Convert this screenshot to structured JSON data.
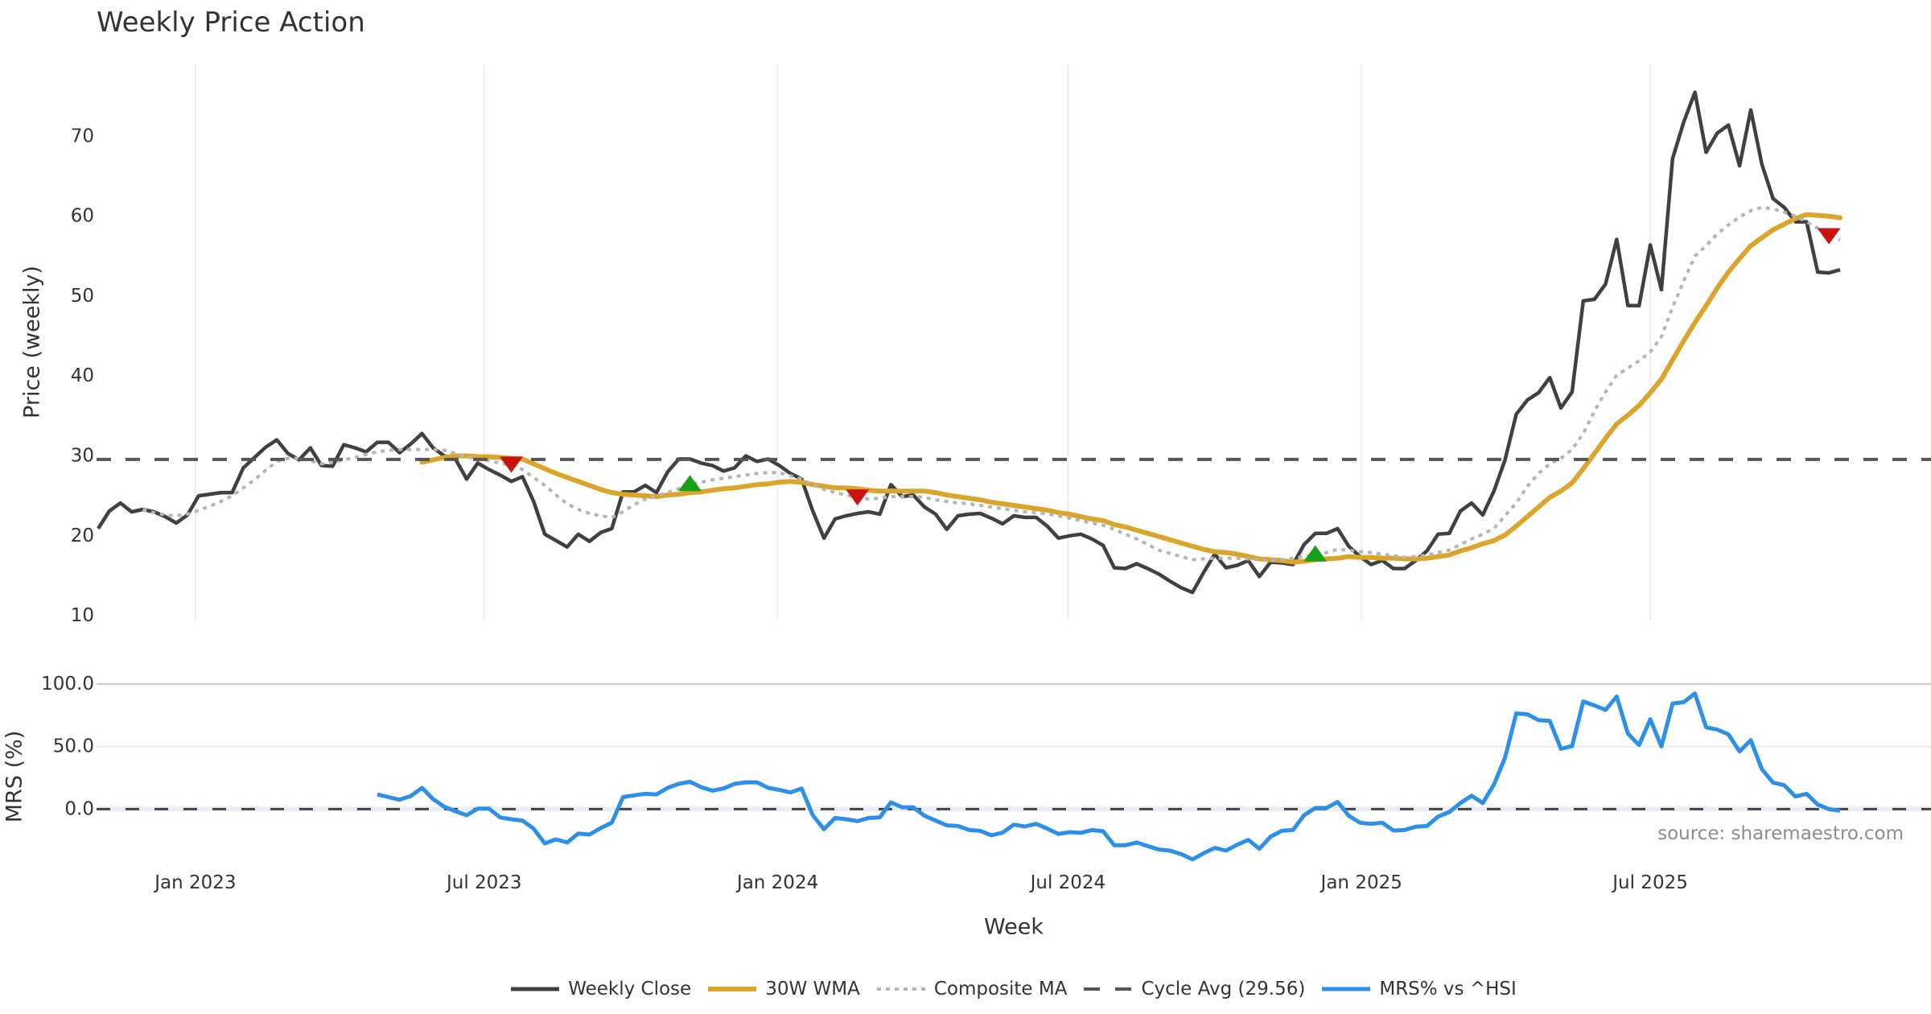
{
  "chart_data": {
    "type": "line",
    "title": "Weekly Price Action",
    "xlabel": "Week",
    "x_range": [
      "2022-10-31",
      "2025-12-24"
    ],
    "week_start": "2022-11-01",
    "week_step_days": 7,
    "x_ticks": [
      {
        "date": "2023-01-01",
        "label": "Jan 2023"
      },
      {
        "date": "2023-07-01",
        "label": "Jul 2023"
      },
      {
        "date": "2024-01-01",
        "label": "Jan 2024"
      },
      {
        "date": "2024-07-01",
        "label": "Jul 2024"
      },
      {
        "date": "2025-01-01",
        "label": "Jan 2025"
      },
      {
        "date": "2025-07-01",
        "label": "Jul 2025"
      }
    ],
    "legend_placement": "bottom",
    "price_panel": {
      "ylabel": "Price (weekly)",
      "ylim": [
        9.5,
        79.0
      ],
      "y_ticks": [
        {
          "value": 10,
          "label": "10"
        },
        {
          "value": 20,
          "label": "20"
        },
        {
          "value": 30,
          "label": "30"
        },
        {
          "value": 40,
          "label": "40"
        },
        {
          "value": 50,
          "label": "50"
        },
        {
          "value": 60,
          "label": "60"
        },
        {
          "value": 70,
          "label": "70"
        }
      ],
      "series": [
        {
          "name": "Weekly Close",
          "color": "#404040",
          "start_index": 0,
          "values": [
            20.9,
            23.1,
            24.1,
            23.0,
            23.3,
            23.0,
            22.4,
            21.6,
            22.6,
            25.0,
            25.2,
            25.4,
            25.4,
            28.5,
            29.8,
            31.1,
            32.0,
            30.3,
            29.5,
            31.0,
            28.8,
            28.7,
            31.4,
            31.0,
            30.5,
            31.7,
            31.7,
            30.4,
            31.5,
            32.8,
            31.0,
            30.0,
            29.6,
            27.1,
            29.1,
            28.3,
            27.6,
            26.8,
            27.4,
            24.3,
            20.2,
            19.4,
            18.6,
            20.2,
            19.3,
            20.4,
            20.9,
            25.5,
            25.5,
            26.3,
            25.4,
            28.0,
            29.6,
            29.6,
            29.1,
            28.8,
            28.1,
            28.5,
            30.0,
            29.3,
            29.6,
            28.8,
            27.8,
            27.1,
            23.1,
            19.7,
            22.1,
            22.5,
            22.8,
            23.0,
            22.7,
            26.4,
            24.9,
            25.1,
            23.6,
            22.7,
            20.8,
            22.5,
            22.7,
            22.8,
            22.2,
            21.5,
            22.5,
            22.3,
            22.3,
            21.2,
            19.7,
            20.0,
            20.2,
            19.6,
            18.8,
            16.0,
            15.9,
            16.5,
            15.9,
            15.2,
            14.3,
            13.5,
            12.9,
            15.4,
            17.7,
            16.0,
            16.3,
            16.9,
            14.9,
            16.7,
            16.6,
            16.4,
            18.9,
            20.3,
            20.3,
            20.9,
            18.7,
            17.4,
            16.4,
            16.9,
            15.9,
            15.9,
            16.9,
            18.1,
            20.2,
            20.3,
            23.1,
            24.1,
            22.6,
            25.6,
            29.5,
            35.2,
            37.0,
            37.9,
            39.8,
            36.0,
            38.0,
            49.4,
            49.6,
            51.5,
            57.1,
            48.8,
            48.8,
            56.4,
            50.8,
            67.2,
            71.8,
            75.5,
            68.0,
            70.4,
            71.4,
            66.3,
            73.3,
            66.5,
            62.2,
            61.1,
            59.3,
            59.3,
            53.0,
            52.9,
            53.3
          ]
        },
        {
          "name": "30W WMA",
          "color": "#daa52a",
          "start_index": 29,
          "values": [
            29.2,
            29.5,
            29.8,
            30.0,
            30.0,
            29.9,
            29.9,
            29.8,
            29.7,
            29.6,
            29.0,
            28.4,
            27.8,
            27.3,
            26.8,
            26.3,
            25.8,
            25.4,
            25.2,
            25.1,
            25.0,
            24.9,
            25.1,
            25.2,
            25.4,
            25.5,
            25.7,
            25.9,
            26.0,
            26.2,
            26.4,
            26.5,
            26.7,
            26.8,
            26.7,
            26.4,
            26.2,
            26.0,
            26.0,
            25.9,
            25.7,
            25.6,
            25.6,
            25.6,
            25.6,
            25.6,
            25.4,
            25.1,
            24.9,
            24.7,
            24.5,
            24.2,
            24.0,
            23.8,
            23.6,
            23.4,
            23.2,
            22.9,
            22.7,
            22.4,
            22.1,
            21.9,
            21.4,
            21.1,
            20.7,
            20.3,
            19.9,
            19.5,
            19.1,
            18.7,
            18.3,
            18.0,
            17.9,
            17.7,
            17.4,
            17.1,
            17.0,
            16.9,
            16.7,
            16.8,
            17.0,
            17.1,
            17.2,
            17.4,
            17.3,
            17.3,
            17.2,
            17.2,
            17.1,
            17.1,
            17.2,
            17.4,
            17.6,
            18.1,
            18.5,
            19.0,
            19.4,
            20.1,
            21.2,
            22.4,
            23.6,
            24.8,
            25.6,
            26.6,
            28.4,
            30.3,
            32.2,
            34.0,
            35.1,
            36.3,
            37.9,
            39.6,
            42.0,
            44.4,
            46.7,
            48.8,
            51.0,
            53.0,
            54.7,
            56.3,
            57.3,
            58.3,
            59.0,
            59.7,
            60.2,
            60.1,
            60.0,
            59.8
          ]
        },
        {
          "name": "Composite MA",
          "color": "#b5b5b5",
          "start_index": 4,
          "values": [
            23.3,
            22.9,
            22.6,
            22.5,
            22.7,
            23.2,
            23.7,
            24.3,
            25.0,
            26.0,
            27.0,
            28.2,
            29.3,
            29.7,
            29.7,
            29.4,
            29.0,
            29.2,
            29.5,
            29.8,
            30.2,
            30.5,
            30.7,
            30.8,
            30.8,
            30.8,
            30.8,
            30.7,
            30.3,
            29.9,
            29.6,
            29.4,
            29.1,
            28.8,
            28.3,
            27.3,
            26.3,
            25.1,
            24.0,
            23.3,
            22.8,
            22.5,
            22.3,
            23.0,
            23.9,
            24.6,
            25.0,
            25.4,
            25.9,
            26.4,
            26.7,
            27.0,
            27.2,
            27.4,
            27.6,
            27.8,
            27.9,
            27.9,
            27.5,
            27.1,
            26.4,
            25.8,
            25.4,
            25.1,
            24.8,
            24.6,
            24.7,
            24.9,
            24.9,
            24.9,
            24.8,
            24.5,
            24.3,
            24.1,
            24.0,
            23.8,
            23.6,
            23.4,
            23.2,
            23.0,
            22.9,
            22.7,
            22.5,
            22.2,
            21.9,
            21.6,
            21.3,
            20.8,
            20.2,
            19.6,
            18.9,
            18.2,
            17.8,
            17.4,
            17.0,
            17.1,
            17.2,
            17.2,
            17.2,
            17.1,
            17.0,
            16.9,
            17.0,
            17.2,
            17.4,
            17.6,
            17.9,
            18.3,
            18.2,
            18.0,
            17.9,
            17.7,
            17.5,
            17.3,
            17.4,
            17.6,
            17.9,
            18.2,
            18.9,
            19.6,
            20.2,
            20.9,
            22.5,
            24.1,
            26.2,
            27.8,
            29.0,
            29.7,
            30.8,
            32.8,
            35.6,
            38.0,
            40.1,
            41.0,
            41.9,
            43.0,
            44.9,
            48.6,
            51.9,
            55.0,
            56.3,
            57.8,
            58.9,
            59.9,
            60.7,
            61.1,
            60.9,
            60.5,
            60.0,
            59.3,
            58.5,
            57.7,
            57.0
          ]
        }
      ],
      "reference_line": {
        "name": "Cycle Avg (29.56)",
        "value": 29.56,
        "color": "#555555"
      },
      "markers": [
        {
          "index": 37,
          "value": 28.9,
          "shape": "triangle-down",
          "color": "#cc1111"
        },
        {
          "index": 53,
          "value": 26.6,
          "shape": "triangle-up",
          "color": "#1a9f1a"
        },
        {
          "index": 68,
          "value": 24.8,
          "shape": "triangle-down",
          "color": "#cc1111"
        },
        {
          "index": 109,
          "value": 17.8,
          "shape": "triangle-up",
          "color": "#1a9f1a"
        },
        {
          "index": 155,
          "value": 57.5,
          "shape": "triangle-down",
          "color": "#cc1111"
        }
      ]
    },
    "mrs_panel": {
      "ylabel": "MRS (%)",
      "ylim": [
        -48,
        100
      ],
      "y_ticks": [
        {
          "value": 100,
          "label": "100.0"
        },
        {
          "value": 50,
          "label": "50.0"
        },
        {
          "value": 0,
          "label": "0.0"
        }
      ],
      "series": [
        {
          "name": "MRS% vs ^HSI",
          "color": "#2c8fe8",
          "start_index": 25,
          "values": [
            11.8,
            9.6,
            7.5,
            10.5,
            17.0,
            8.0,
            1.9,
            -1.7,
            -4.9,
            0.4,
            0.4,
            -6.6,
            -8.1,
            -9.2,
            -15.6,
            -27.4,
            -24.2,
            -26.7,
            -19.5,
            -20.3,
            -15.2,
            -10.9,
            9.6,
            11.0,
            12.2,
            11.8,
            17.0,
            20.2,
            21.9,
            17.6,
            14.8,
            16.5,
            20.2,
            21.4,
            21.4,
            17.0,
            15.4,
            13.3,
            16.5,
            -4.9,
            -16.1,
            -7.1,
            -8.1,
            -9.6,
            -7.1,
            -6.6,
            5.4,
            1.5,
            1.5,
            -5.3,
            -9.2,
            -13.0,
            -13.5,
            -16.7,
            -17.4,
            -21.0,
            -18.8,
            -12.4,
            -13.9,
            -11.8,
            -15.6,
            -19.9,
            -18.4,
            -19.0,
            -16.7,
            -17.7,
            -28.9,
            -28.9,
            -26.7,
            -29.6,
            -32.3,
            -33.2,
            -36.0,
            -40.2,
            -35.3,
            -31.0,
            -33.2,
            -28.5,
            -24.6,
            -31.7,
            -22.0,
            -17.4,
            -16.7,
            -4.9,
            0.9,
            0.9,
            5.8,
            -5.3,
            -10.9,
            -11.8,
            -10.9,
            -17.1,
            -16.7,
            -14.1,
            -13.5,
            -6.0,
            -2.3,
            4.8,
            10.7,
            4.8,
            19.7,
            41.1,
            76.5,
            75.8,
            71.1,
            70.5,
            48.2,
            50.4,
            86.1,
            82.9,
            79.3,
            90.0,
            60.4,
            51.2,
            71.8,
            50.1,
            84.4,
            85.5,
            92.5,
            65.4,
            63.6,
            59.8,
            46.1,
            55.1,
            31.9,
            21.2,
            19.1,
            10.1,
            12.2,
            3.7,
            0.0,
            -1.3
          ]
        }
      ],
      "zero_line": {
        "value": 0,
        "color": "#444444"
      }
    },
    "source": "source: sharemaestro.com"
  }
}
